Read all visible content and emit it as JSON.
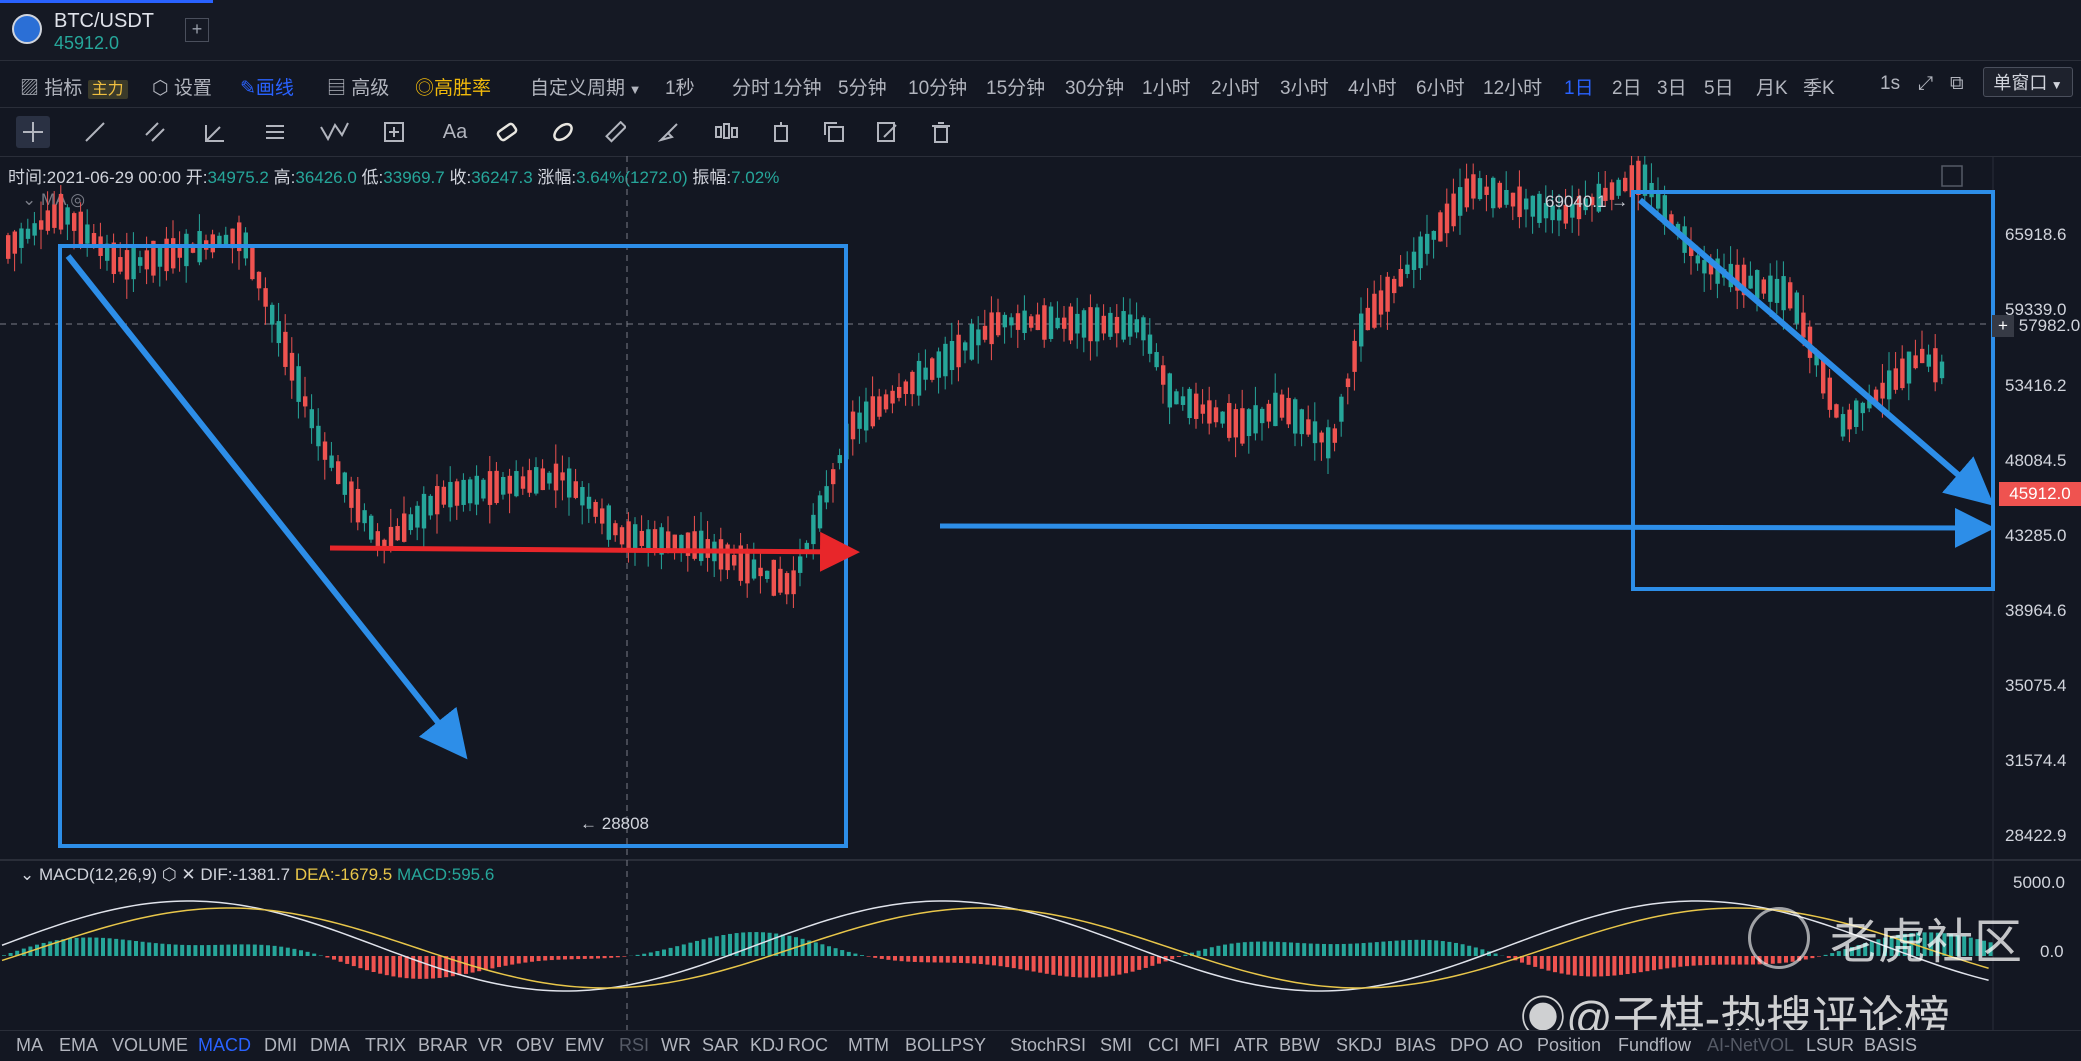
{
  "tab": {
    "symbol": "BTC/USDT",
    "price": "45912.0",
    "add_icon": "+"
  },
  "toolbar": {
    "indicators": "指标",
    "main_tag": "主力",
    "settings": "设置",
    "draw": "画线",
    "advanced": "高级",
    "win_rate": "高胜率",
    "custom_period": "自定义周期",
    "periods": [
      "1秒",
      "分时",
      "1分钟",
      "5分钟",
      "10分钟",
      "15分钟",
      "30分钟",
      "1小时",
      "2小时",
      "3小时",
      "4小时",
      "6小时",
      "12小时",
      "1日",
      "2日",
      "3日",
      "5日",
      "月K",
      "季K"
    ],
    "active_period": "1日",
    "seconds": "1s",
    "window_mode": "单窗口"
  },
  "drawing_tools": [
    "crosshair-icon",
    "trendline-icon",
    "parallel-lines-icon",
    "angle-icon",
    "fib-icon",
    "wave-icon",
    "measure-icon",
    "text-icon",
    "magnet-icon",
    "lock-icon",
    "ruler-icon",
    "brush-icon",
    "pattern-icon",
    "position-icon",
    "copy-icon",
    "edit-icon",
    "trash-icon"
  ],
  "ohlc": {
    "time_label": "时间:",
    "time": "2021-06-29 00:00",
    "open_label": "开:",
    "open": "34975.2",
    "high_label": "高:",
    "high": "36426.0",
    "low_label": "低:",
    "low": "33969.7",
    "close_label": "收:",
    "close": "36247.3",
    "change_label": "涨幅:",
    "change": "3.64%(1272.0)",
    "amp_label": "振幅:",
    "amp": "7.02%"
  },
  "ma_label": "MA",
  "price_axis": {
    "ticks": [
      "65918.6",
      "59339.0",
      "53416.2",
      "48084.5",
      "43285.0",
      "38964.6",
      "35075.4",
      "31574.4",
      "28422.9"
    ],
    "crosshair_price": "57982.0",
    "last_price": "45912.0"
  },
  "annotations": {
    "high": "69040.1",
    "low": "28808"
  },
  "macd": {
    "name": "MACD(12,26,9)",
    "dif_label": "DIF:",
    "dif": "-1381.7",
    "dea_label": "DEA:",
    "dea": "-1679.5",
    "macd_label": "MACD:",
    "macd": "595.6",
    "axis_top": "5000.0",
    "axis_mid": "0.0"
  },
  "indicators": [
    "MA",
    "EMA",
    "VOLUME",
    "MACD",
    "DMI",
    "DMA",
    "TRIX",
    "BRAR",
    "VR",
    "OBV",
    "EMV",
    "RSI",
    "WR",
    "SAR",
    "KDJ",
    "ROC",
    "MTM",
    "BOLL",
    "PSY",
    "StochRSI",
    "SMI",
    "CCI",
    "MFI",
    "ATR",
    "BBW",
    "SKDJ",
    "BIAS",
    "DPO",
    "AO",
    "Position",
    "Fundflow",
    "AI-NetVOL",
    "LSUR",
    "BASIS"
  ],
  "active_indicator": "MACD",
  "watermarks": {
    "brand": "老虎社区",
    "author": "@子棋-热搜评论榜"
  },
  "colors": {
    "up": "#26a69a",
    "down": "#ef5350",
    "accent": "#2962ff",
    "box": "#2d8ee8",
    "arrow_red": "#e8262a"
  }
}
